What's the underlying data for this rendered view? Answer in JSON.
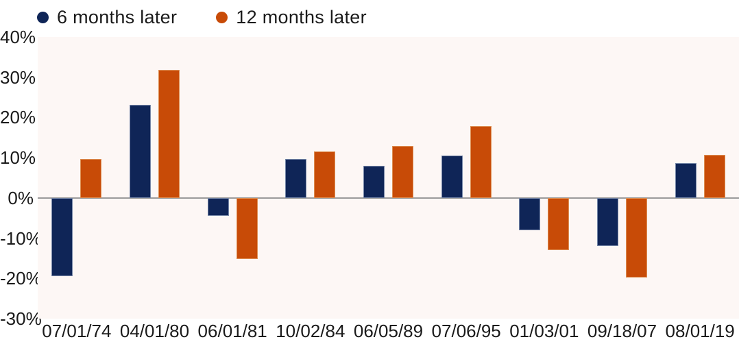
{
  "chart_data": {
    "type": "bar",
    "title": "",
    "categories": [
      "07/01/74",
      "04/01/80",
      "06/01/81",
      "10/02/84",
      "06/05/89",
      "07/06/95",
      "01/03/01",
      "09/18/07",
      "08/01/19"
    ],
    "series": [
      {
        "name": "6 months later",
        "color": "#0f2557",
        "edge_color": "#7787a8",
        "values": [
          -19.4,
          23.2,
          -4.4,
          9.6,
          8.0,
          10.6,
          -8.0,
          -11.9,
          8.7
        ]
      },
      {
        "name": "12 months later",
        "color": "#c84b07",
        "edge_color": "#dd9055",
        "values": [
          9.7,
          31.9,
          -15.2,
          11.6,
          13.0,
          17.8,
          -12.9,
          -19.8,
          10.7
        ]
      }
    ],
    "xlabel": "",
    "ylabel": "",
    "ylim": [
      -30,
      40
    ],
    "y_ticks": [
      {
        "label": "40%",
        "value": 40
      },
      {
        "label": "30%",
        "value": 30
      },
      {
        "label": "20%",
        "value": 20
      },
      {
        "label": "10%",
        "value": 10
      },
      {
        "label": "0%",
        "value": 0
      },
      {
        "label": "-10%",
        "value": -10
      },
      {
        "label": "-20%",
        "value": -20
      },
      {
        "label": "-30%",
        "value": -30
      }
    ],
    "grid": "zero-line-only",
    "legend_position": "top-left",
    "colors": {
      "plot_background": "#fdf7f5",
      "zero_line": "#9b9b9b",
      "text": "#1a1a1a",
      "page_background": "#ffffff"
    }
  }
}
